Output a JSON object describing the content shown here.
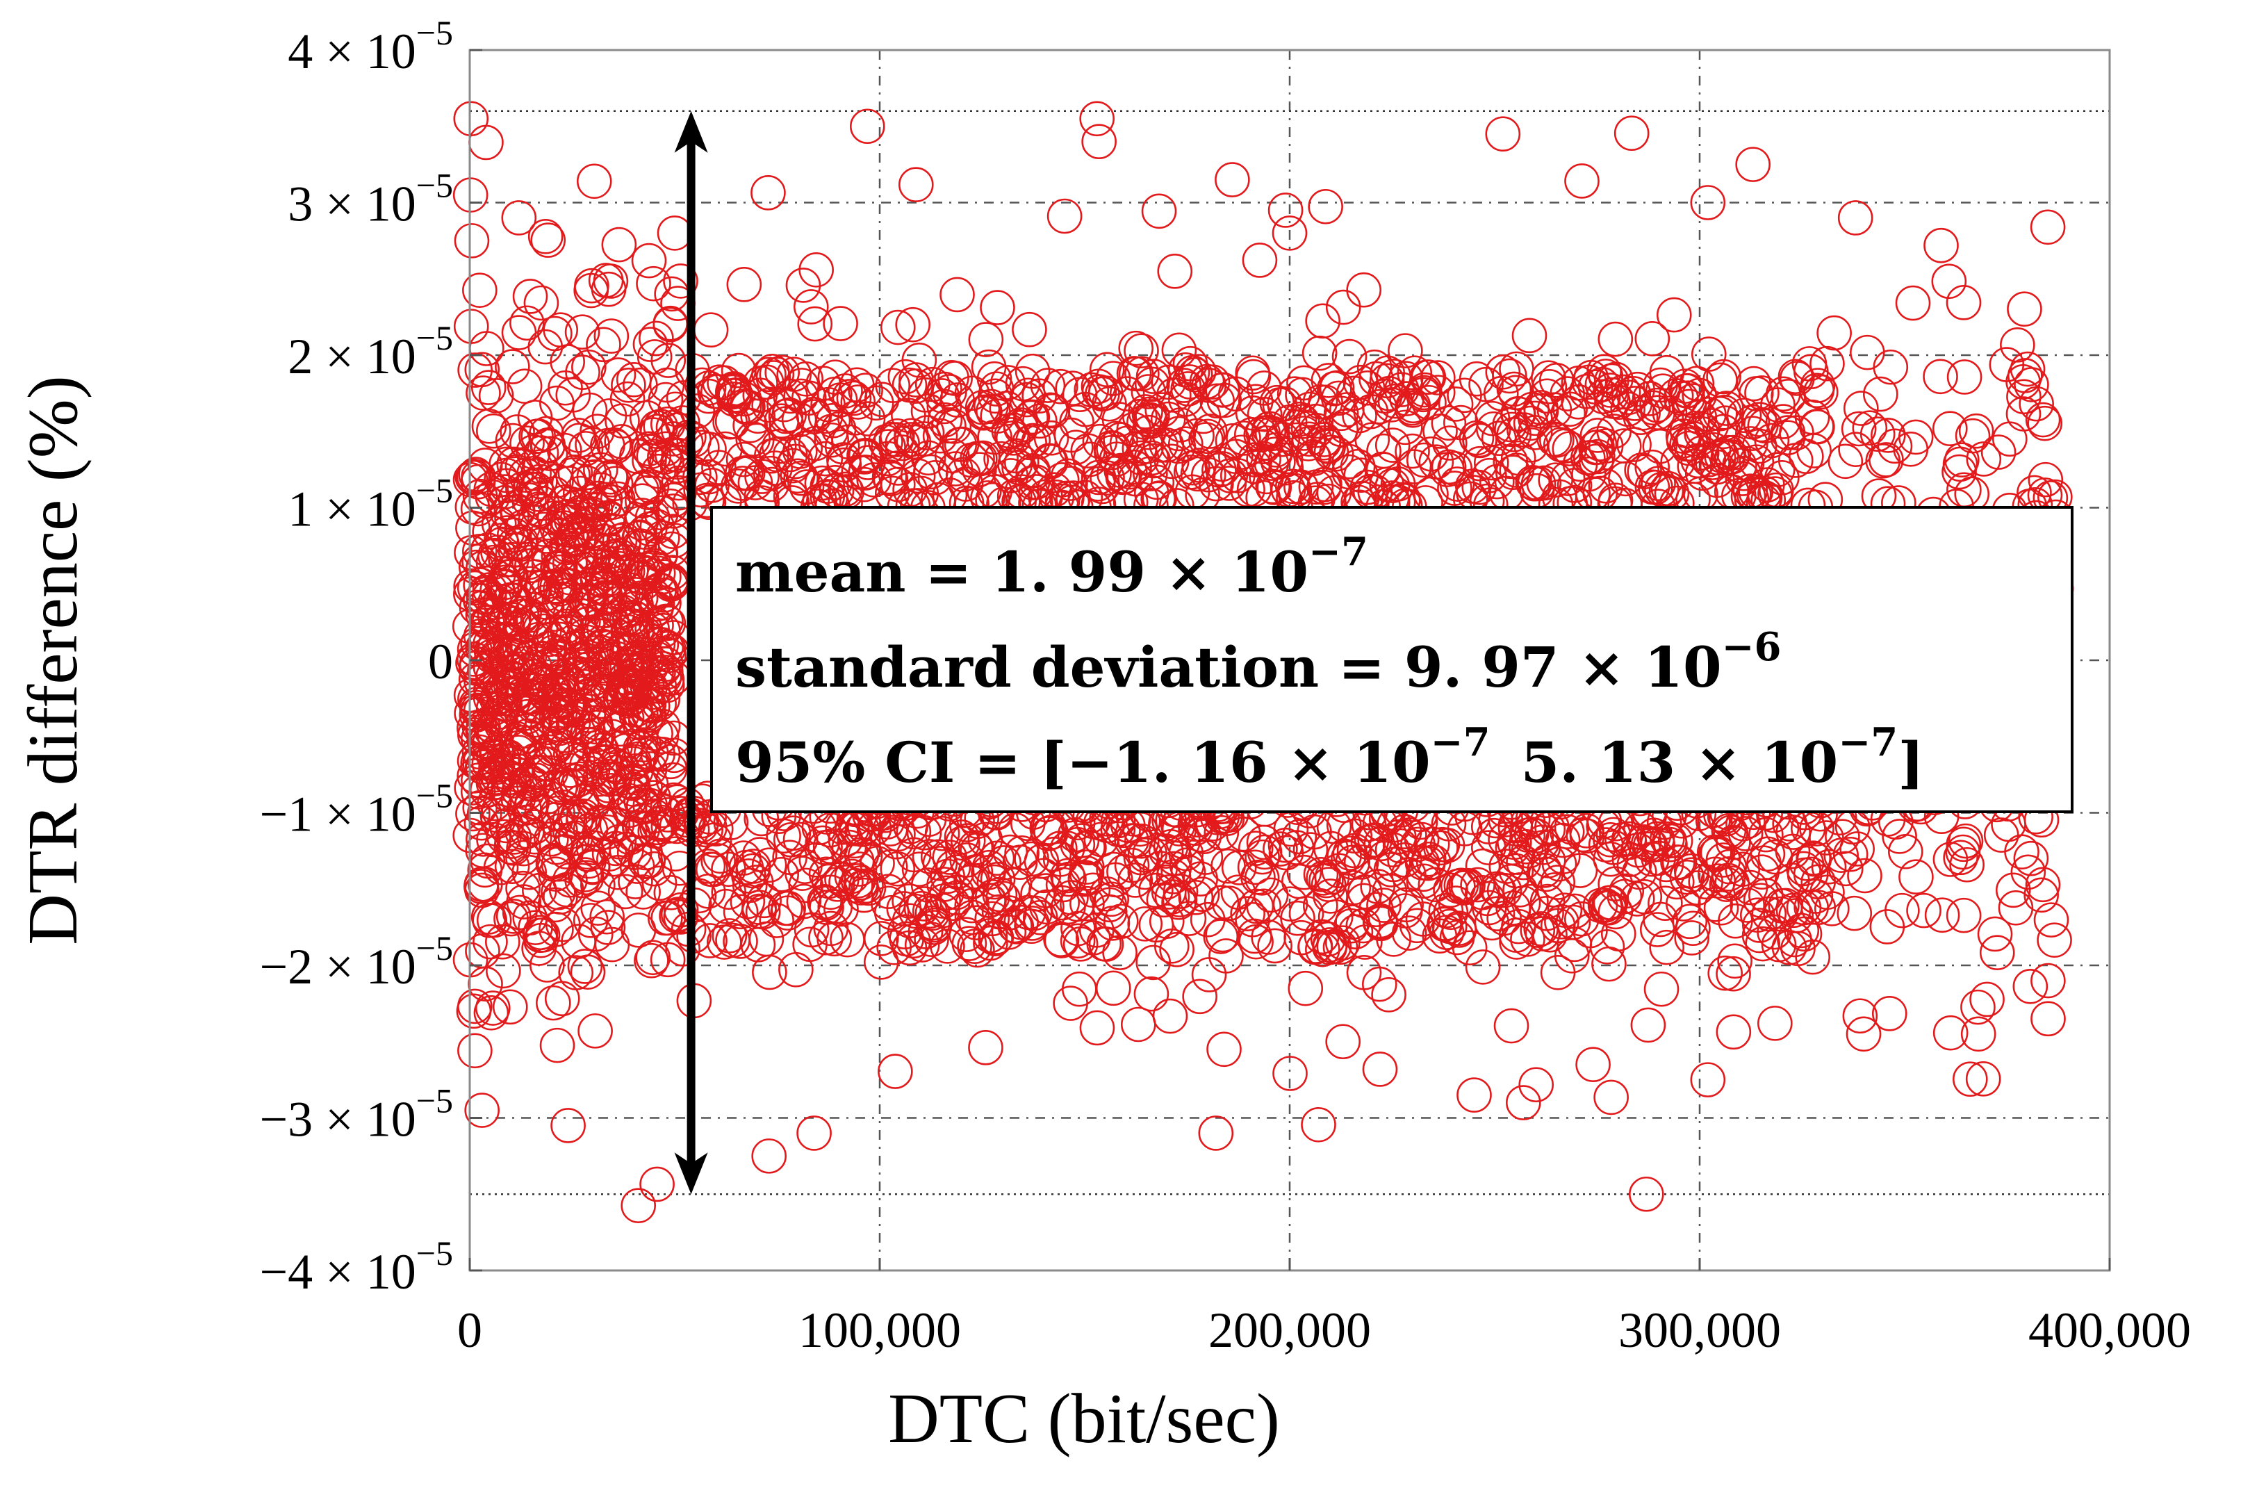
{
  "chart_data": {
    "type": "scatter",
    "title": "",
    "xlabel": "DTC (bit/sec)",
    "ylabel": "DTR difference (%)",
    "xlim": [
      0,
      400000
    ],
    "ylim": [
      -4e-05,
      4e-05
    ],
    "grid": true,
    "marker": "open-circle",
    "series_color": "#e31a1c",
    "x_ticks": [
      {
        "value": 0,
        "label": "0"
      },
      {
        "value": 100000,
        "label": "100,000"
      },
      {
        "value": 200000,
        "label": "200,000"
      },
      {
        "value": 300000,
        "label": "300,000"
      },
      {
        "value": 400000,
        "label": "400,000"
      }
    ],
    "y_ticks": [
      {
        "value": 4e-05,
        "label": "4 × 10",
        "exp": "−5"
      },
      {
        "value": 3e-05,
        "label": "3 × 10",
        "exp": "−5"
      },
      {
        "value": 2e-05,
        "label": "2 × 10",
        "exp": "−5"
      },
      {
        "value": 1e-05,
        "label": "1 × 10",
        "exp": "−5"
      },
      {
        "value": 0,
        "label": "0",
        "exp": ""
      },
      {
        "value": -1e-05,
        "label": "−1 × 10",
        "exp": "−5"
      },
      {
        "value": -2e-05,
        "label": "−2 × 10",
        "exp": "−5"
      },
      {
        "value": -3e-05,
        "label": "−3 × 10",
        "exp": "−5"
      },
      {
        "value": -4e-05,
        "label": "−4 × 10",
        "exp": "−5"
      }
    ],
    "bound_lines": [
      3.6e-05,
      -3.5e-05
    ],
    "range_arrow": {
      "x": 54000,
      "y_top": 3.6e-05,
      "y_bottom": -3.5e-05
    },
    "stats": {
      "line1": {
        "text": "mean = 1. 99 × 10",
        "exp": "−7"
      },
      "line2": {
        "text": "standard deviation = 9. 97 × 10",
        "exp": "−6"
      },
      "line3": {
        "text_a": "95% CI = [−1. 16 × 10",
        "exp_a": "−7",
        "text_b": "5. 13 × 10",
        "exp_b": "−7",
        "close": "]"
      }
    },
    "series": [
      {
        "name": "DTR difference",
        "n_points": 3000,
        "sampling_note": "approximately normal, mean 1.99e-7, sd 9.97e-6; density higher for DTC below 50,000",
        "points": [
          {
            "x": 300,
            "y": 3.55e-05
          },
          {
            "x": 200,
            "y": 3.05e-05
          },
          {
            "x": 500,
            "y": 2.75e-05
          },
          {
            "x": 97000,
            "y": 3.5e-05
          },
          {
            "x": 153000,
            "y": 3.55e-05
          },
          {
            "x": 153500,
            "y": 3.4e-05
          },
          {
            "x": 252000,
            "y": 3.45e-05
          },
          {
            "x": 313000,
            "y": 3.25e-05
          },
          {
            "x": 186000,
            "y": 3.15e-05
          },
          {
            "x": 199000,
            "y": 2.95e-05
          },
          {
            "x": 302000,
            "y": 3e-05
          },
          {
            "x": 338000,
            "y": 2.9e-05
          },
          {
            "x": 12000,
            "y": 2.9e-05
          },
          {
            "x": 50000,
            "y": 2.8e-05
          },
          {
            "x": 200000,
            "y": 2.8e-05
          },
          {
            "x": 1000,
            "y": -2.3e-05
          },
          {
            "x": 3000,
            "y": -2.95e-05
          },
          {
            "x": 24000,
            "y": -3.05e-05
          },
          {
            "x": 73000,
            "y": -3.25e-05
          },
          {
            "x": 84000,
            "y": -3.1e-05
          },
          {
            "x": 182000,
            "y": -3.1e-05
          },
          {
            "x": 287000,
            "y": -3.5e-05
          },
          {
            "x": 302000,
            "y": -2.75e-05
          },
          {
            "x": 245000,
            "y": -2.85e-05
          },
          {
            "x": 257000,
            "y": -2.9e-05
          },
          {
            "x": 274000,
            "y": -2.65e-05
          },
          {
            "x": 213000,
            "y": -2.5e-05
          },
          {
            "x": 368000,
            "y": -2.45e-05
          },
          {
            "x": 385000,
            "y": -2.35e-05
          },
          {
            "x": 340000,
            "y": -2.45e-05
          }
        ]
      }
    ]
  }
}
